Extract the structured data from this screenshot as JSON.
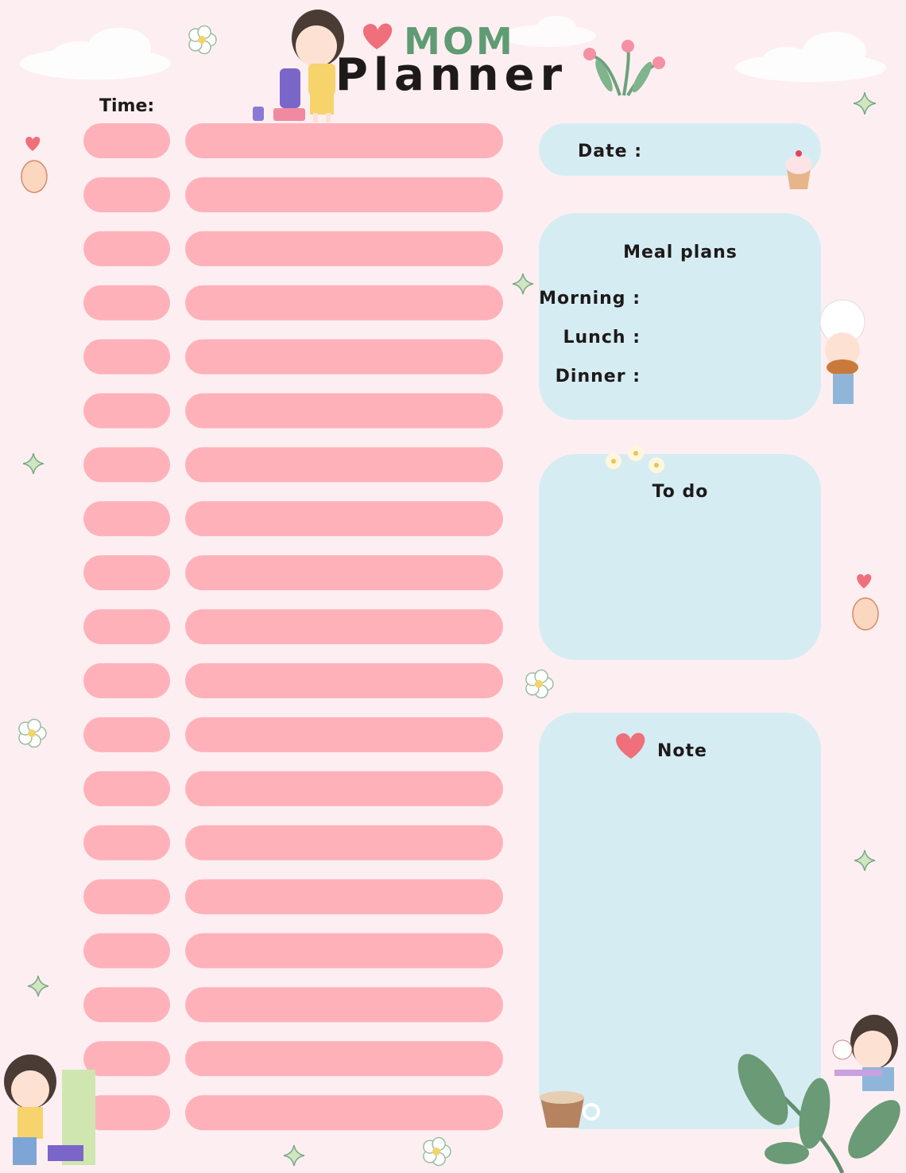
{
  "header": {
    "subtitle": "MOM",
    "title": "Planner"
  },
  "schedule": {
    "label": "Time:"
  },
  "date": {
    "label": "Date :"
  },
  "meal_plans": {
    "title": "Meal plans",
    "items": [
      "Morning :",
      "Lunch :",
      "Dinner :"
    ]
  },
  "todo": {
    "title": "To do"
  },
  "note": {
    "title": "Note"
  }
}
